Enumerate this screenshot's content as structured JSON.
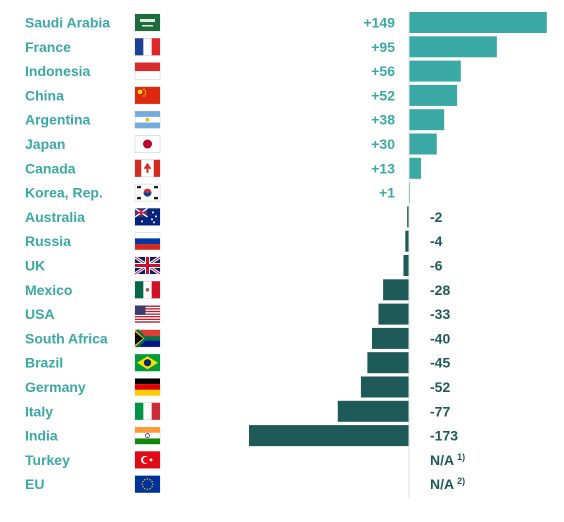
{
  "chart_data": {
    "type": "bar",
    "orientation": "horizontal",
    "categories": [
      "Saudi Arabia",
      "France",
      "Indonesia",
      "China",
      "Argentina",
      "Japan",
      "Canada",
      "Korea, Rep.",
      "Australia",
      "Russia",
      "UK",
      "Mexico",
      "USA",
      "South Africa",
      "Brazil",
      "Germany",
      "Italy",
      "India",
      "Turkey",
      "EU"
    ],
    "values": [
      149,
      95,
      56,
      52,
      38,
      30,
      13,
      1,
      -2,
      -4,
      -6,
      -28,
      -33,
      -40,
      -45,
      -52,
      -77,
      -173,
      null,
      null
    ],
    "labels": [
      "+149",
      "+95",
      "+56",
      "+52",
      "+38",
      "+30",
      "+13",
      "+1",
      "-2",
      "-4",
      "-6",
      "-28",
      "-33",
      "-40",
      "-45",
      "-52",
      "-77",
      "-173",
      "N/A",
      "N/A"
    ],
    "footnote_marks": [
      "",
      "",
      "",
      "",
      "",
      "",
      "",
      "",
      "",
      "",
      "",
      "",
      "",
      "",
      "",
      "",
      "",
      "",
      "1)",
      "2)"
    ],
    "flag_icons": [
      "flag-saudi-arabia-icon",
      "flag-france-icon",
      "flag-indonesia-icon",
      "flag-china-icon",
      "flag-argentina-icon",
      "flag-japan-icon",
      "flag-canada-icon",
      "flag-south-korea-icon",
      "flag-australia-icon",
      "flag-russia-icon",
      "flag-uk-icon",
      "flag-mexico-icon",
      "flag-usa-icon",
      "flag-south-africa-icon",
      "flag-brazil-icon",
      "flag-germany-icon",
      "flag-italy-icon",
      "flag-india-icon",
      "flag-turkey-icon",
      "flag-eu-icon"
    ],
    "colors": {
      "positive": "#3aa9a5",
      "negative": "#1e5a57",
      "label": "#3aa9a5"
    },
    "grid": false,
    "legend": "none"
  }
}
